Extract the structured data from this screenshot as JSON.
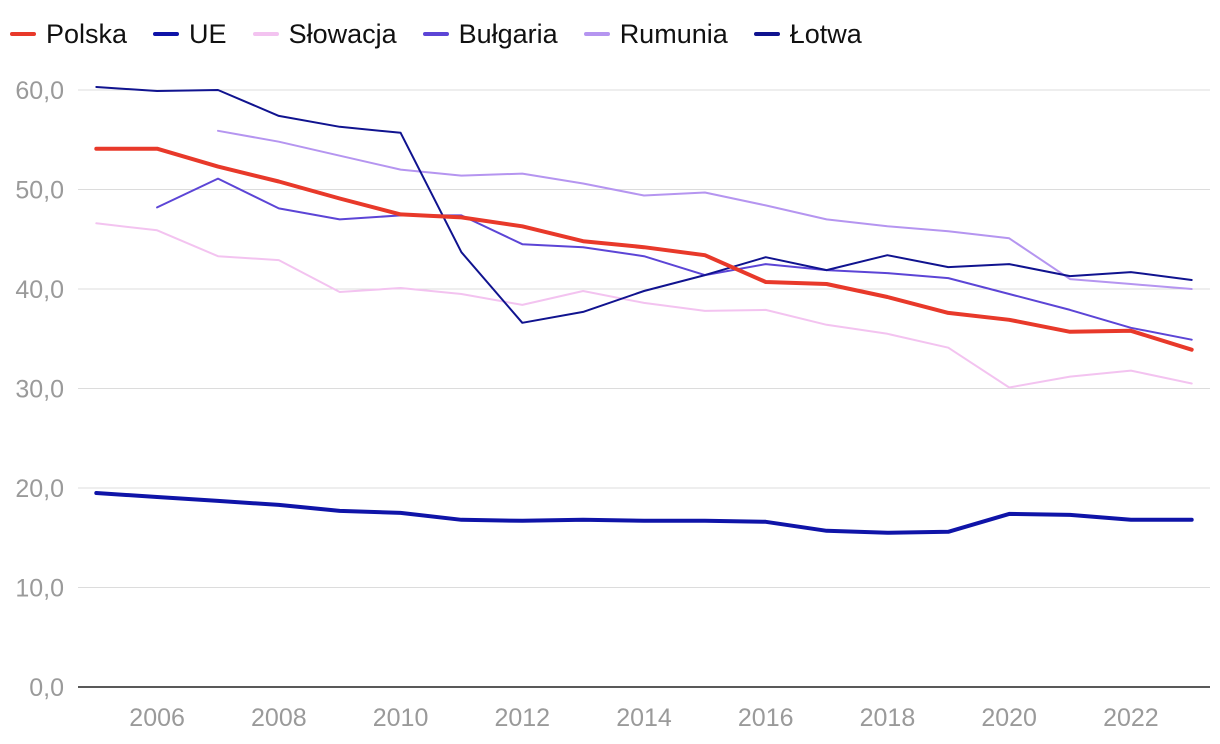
{
  "chart_data": {
    "type": "line",
    "title": "",
    "xlabel": "",
    "ylabel": "",
    "x": [
      2005,
      2006,
      2007,
      2008,
      2009,
      2010,
      2011,
      2012,
      2013,
      2014,
      2015,
      2016,
      2017,
      2018,
      2019,
      2020,
      2021,
      2022,
      2023
    ],
    "xlim": [
      2004.7,
      2023.3
    ],
    "ylim": [
      0,
      60
    ],
    "xticks": [
      2006,
      2008,
      2010,
      2012,
      2014,
      2016,
      2018,
      2020,
      2022
    ],
    "xtick_labels": [
      "2006",
      "2008",
      "2010",
      "2012",
      "2014",
      "2016",
      "2018",
      "2020",
      "2022"
    ],
    "yticks": [
      0,
      10,
      20,
      30,
      40,
      50,
      60
    ],
    "ytick_labels": [
      "0,0",
      "10,0",
      "20,0",
      "30,0",
      "40,0",
      "50,0",
      "60,0"
    ],
    "grid": "horizontal",
    "legend_position": "top-left",
    "series": [
      {
        "name": "Polska",
        "color": "#e8392a",
        "width": 4,
        "values": [
          54.1,
          54.1,
          52.3,
          50.8,
          49.1,
          47.5,
          47.2,
          46.3,
          44.8,
          44.2,
          43.4,
          40.7,
          40.5,
          39.2,
          37.6,
          36.9,
          35.7,
          35.8,
          33.9
        ]
      },
      {
        "name": "UE",
        "color": "#0f14a8",
        "width": 4,
        "values": [
          19.5,
          19.1,
          18.7,
          18.3,
          17.7,
          17.5,
          16.8,
          16.7,
          16.8,
          16.7,
          16.7,
          16.6,
          15.7,
          15.5,
          15.6,
          17.4,
          17.3,
          16.8,
          16.8
        ]
      },
      {
        "name": "Słowacja",
        "color": "#f3c3f0",
        "width": 2,
        "values": [
          46.6,
          45.9,
          43.3,
          42.9,
          39.7,
          40.1,
          39.5,
          38.4,
          39.8,
          38.6,
          37.8,
          37.9,
          36.4,
          35.5,
          34.1,
          30.1,
          31.2,
          31.8,
          30.5
        ]
      },
      {
        "name": "Bułgaria",
        "color": "#5c45d6",
        "width": 2,
        "values": [
          null,
          48.2,
          51.1,
          48.1,
          47.0,
          47.4,
          47.4,
          44.5,
          44.2,
          43.3,
          41.4,
          42.5,
          41.9,
          41.6,
          41.1,
          39.5,
          37.9,
          36.1,
          34.9
        ]
      },
      {
        "name": "Rumunia",
        "color": "#b595f0",
        "width": 2,
        "values": [
          null,
          null,
          55.9,
          54.8,
          53.4,
          52.0,
          51.4,
          51.6,
          50.6,
          49.4,
          49.7,
          48.4,
          47.0,
          46.3,
          45.8,
          45.1,
          41.0,
          40.5,
          40.0
        ]
      },
      {
        "name": "Łotwa",
        "color": "#10138f",
        "width": 2,
        "values": [
          60.3,
          59.9,
          60.0,
          57.4,
          56.3,
          55.7,
          43.7,
          36.6,
          37.7,
          39.8,
          41.4,
          43.2,
          41.9,
          43.4,
          42.2,
          42.5,
          41.3,
          41.7,
          40.9
        ]
      }
    ]
  }
}
